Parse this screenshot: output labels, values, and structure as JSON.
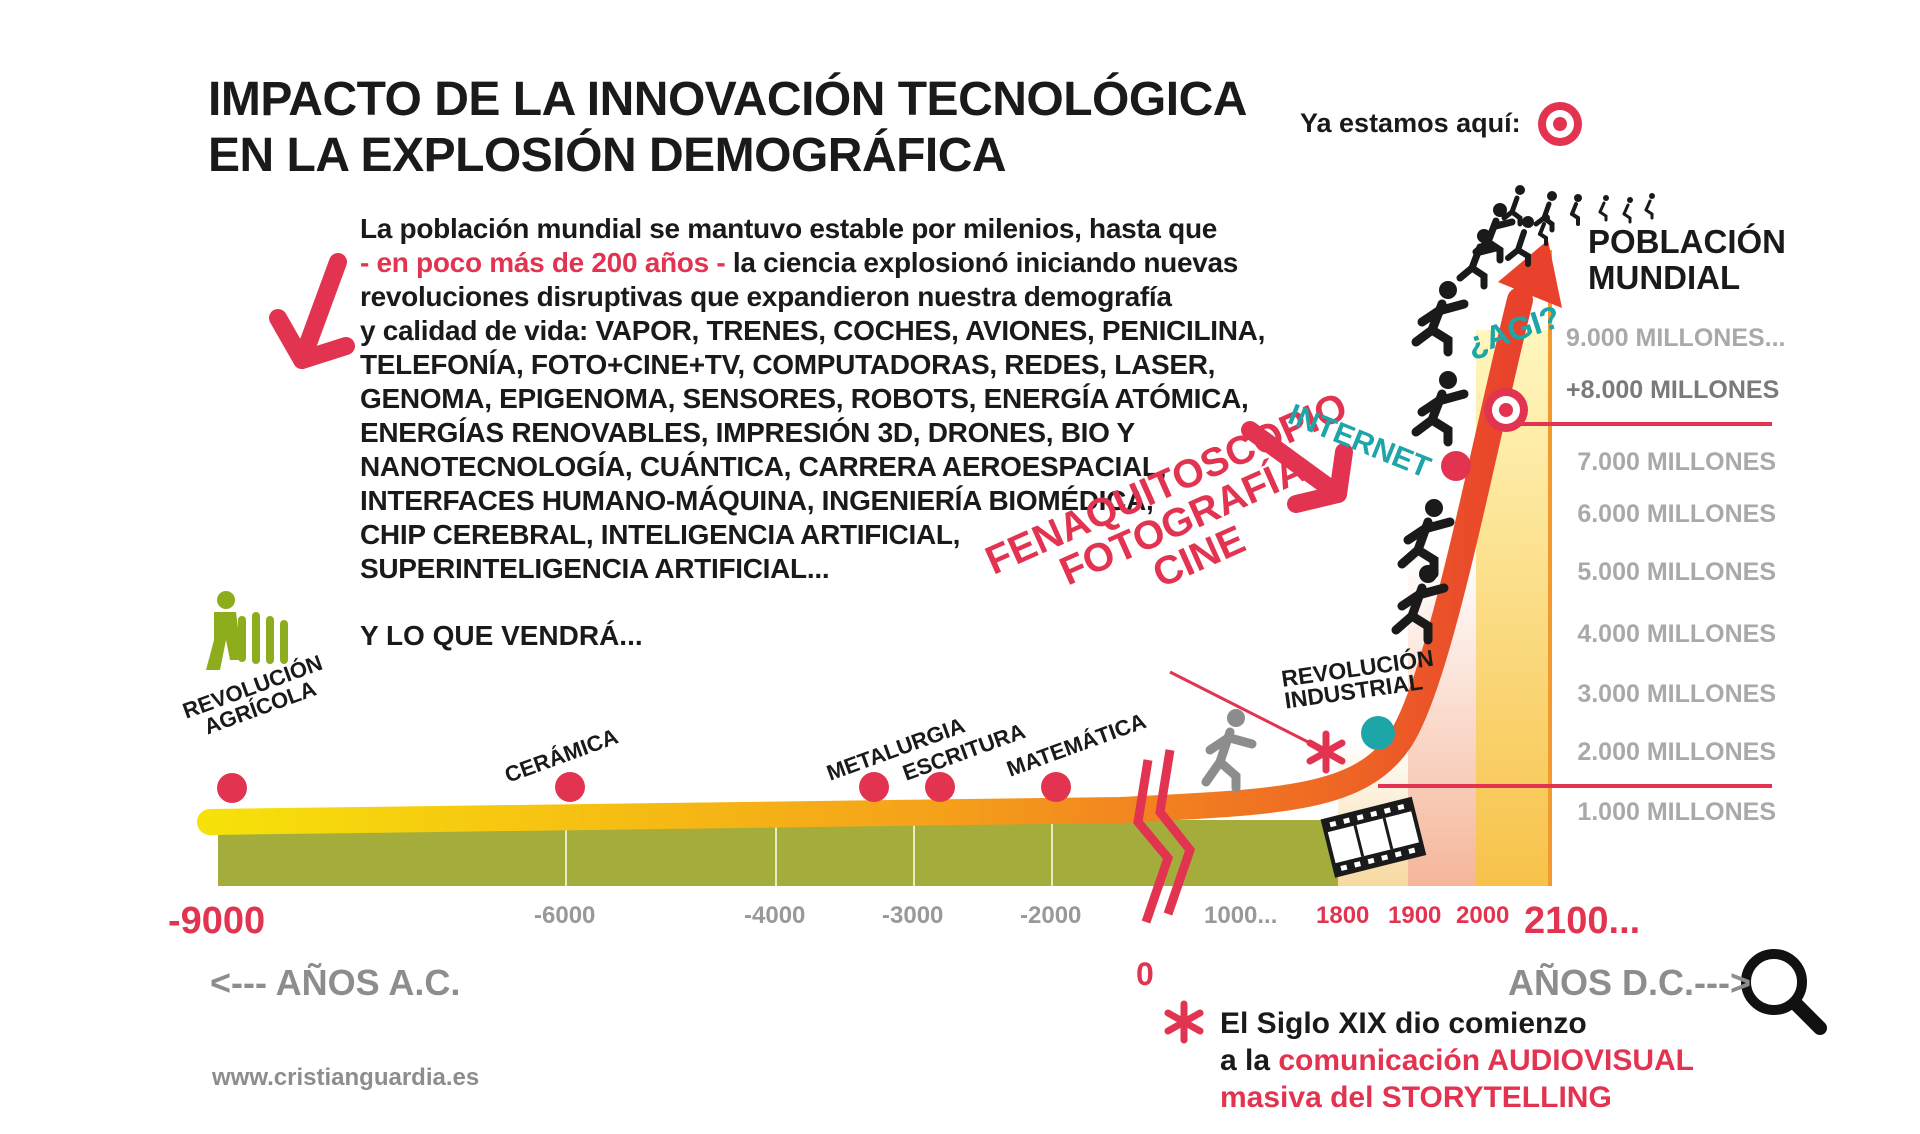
{
  "title": {
    "line1": "IMPACTO DE LA INNOVACIÓN TECNOLÓGICA",
    "line2": "EN LA EXPLOSIÓN DEMOGRÁFICA"
  },
  "here_label": "Ya estamos aquí:",
  "intro": {
    "line1": "La población mundial se mantuvo estable por milenios, hasta que",
    "line2_highlight": "- en poco más de 200 años -",
    "line2_rest": " la ciencia explosionó iniciando nuevas",
    "line3": "revoluciones disruptivas que expandieron nuestra demografía",
    "line4": "y calidad de vida: VAPOR, TRENES, COCHES, AVIONES, PENICILINA,",
    "line5": "TELEFONÍA, FOTO+CINE+TV, COMPUTADORAS, REDES, LASER,",
    "line6": "GENOMA, EPIGENOMA, SENSORES, ROBOTS, ENERGÍA ATÓMICA,",
    "line7": "ENERGÍAS RENOVABLES, IMPRESIÓN 3D, DRONES, BIO Y",
    "line8": "NANOTECNOLOGÍA, CUÁNTICA, CARRERA AEROESPACIAL,",
    "line9": "INTERFACES HUMANO-MÁQUINA, INGENIERÍA BIOMÉDICA,",
    "line10": "CHIP CEREBRAL, INTELIGENCIA ARTIFICIAL,",
    "line11": "SUPERINTELIGENCIA ARTIFICIAL..."
  },
  "closing": "Y LO QUE VENDRÁ...",
  "population": {
    "title1": "POBLACIÓN",
    "title2": "MUNDIAL",
    "levels": [
      "9.000 MILLONES...",
      "+8.000 MILLONES",
      "7.000 MILLONES",
      "6.000 MILLONES",
      "5.000 MILLONES",
      "4.000 MILLONES",
      "3.000 MILLONES",
      "2.000 MILLONES",
      "1.000 MILLONES"
    ]
  },
  "events": {
    "agricola1": "REVOLUCIÓN",
    "agricola2": "AGRÍCOLA",
    "ceramica": "CERÁMICA",
    "metalurgia": "METALURGIA",
    "escritura": "ESCRITURA",
    "matematica": "MATEMÁTICA",
    "fena1": "FENAQUITOSCOPIO",
    "fena2": "FOTOGRAFÍA",
    "fena3": "CINE",
    "industrial1": "REVOLUCIÓN",
    "industrial2": "INDUSTRIAL",
    "internet": "INTERNET",
    "agi": "¿AGI?"
  },
  "axis": {
    "start": "-9000",
    "ticks": [
      "-6000",
      "-4000",
      "-3000",
      "-2000",
      "1000...",
      "1800",
      "1900",
      "2000"
    ],
    "end": "2100...",
    "zero": "0",
    "bc": "<--- AÑOS A.C.",
    "ad": "AÑOS D.C.--->"
  },
  "website": "www.cristianguardia.es",
  "note": {
    "line1": "El Siglo XIX dio comienzo",
    "line2_a": "a la ",
    "line2_b": "comunicación AUDIOVISUAL",
    "line3": "masiva del STORYTELLING"
  },
  "colors": {
    "accent": "#e23450",
    "teal": "#1ea5a8",
    "ground": "#a4ad3c",
    "curve_start": "#f6e10a",
    "curve_end": "#e8412c"
  },
  "icons": [
    "arrow-icon",
    "runner-icon",
    "farmer-icon",
    "target-icon",
    "asterisk-icon",
    "film-strip-icon",
    "magnifier-icon"
  ]
}
